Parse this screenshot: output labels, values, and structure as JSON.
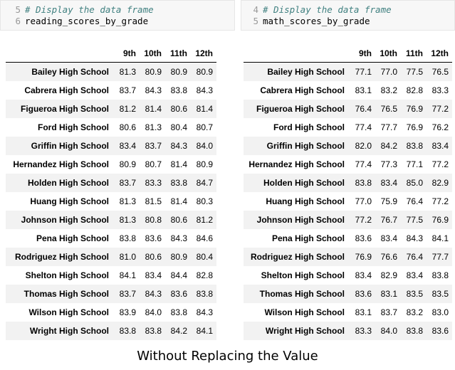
{
  "left_cell": {
    "lines": [
      {
        "num": "5",
        "text": "# Display the data frame",
        "comment": true
      },
      {
        "num": "6",
        "text": "reading_scores_by_grade",
        "comment": false
      }
    ]
  },
  "right_cell": {
    "lines": [
      {
        "num": "4",
        "text": "# Display the data frame",
        "comment": true
      },
      {
        "num": "5",
        "text": "math_scores_by_grade",
        "comment": false
      }
    ]
  },
  "reading_table": {
    "columns": [
      "9th",
      "10th",
      "11th",
      "12th"
    ],
    "rows": [
      {
        "school": "Bailey High School",
        "values": [
          "81.3",
          "80.9",
          "80.9",
          "80.9"
        ]
      },
      {
        "school": "Cabrera High School",
        "values": [
          "83.7",
          "84.3",
          "83.8",
          "84.3"
        ]
      },
      {
        "school": "Figueroa High School",
        "values": [
          "81.2",
          "81.4",
          "80.6",
          "81.4"
        ]
      },
      {
        "school": "Ford High School",
        "values": [
          "80.6",
          "81.3",
          "80.4",
          "80.7"
        ]
      },
      {
        "school": "Griffin High School",
        "values": [
          "83.4",
          "83.7",
          "84.3",
          "84.0"
        ]
      },
      {
        "school": "Hernandez High School",
        "values": [
          "80.9",
          "80.7",
          "81.4",
          "80.9"
        ]
      },
      {
        "school": "Holden High School",
        "values": [
          "83.7",
          "83.3",
          "83.8",
          "84.7"
        ]
      },
      {
        "school": "Huang High School",
        "values": [
          "81.3",
          "81.5",
          "81.4",
          "80.3"
        ]
      },
      {
        "school": "Johnson High School",
        "values": [
          "81.3",
          "80.8",
          "80.6",
          "81.2"
        ]
      },
      {
        "school": "Pena High School",
        "values": [
          "83.8",
          "83.6",
          "84.3",
          "84.6"
        ]
      },
      {
        "school": "Rodriguez High School",
        "values": [
          "81.0",
          "80.6",
          "80.9",
          "80.4"
        ]
      },
      {
        "school": "Shelton High School",
        "values": [
          "84.1",
          "83.4",
          "84.4",
          "82.8"
        ]
      },
      {
        "school": "Thomas High School",
        "values": [
          "83.7",
          "84.3",
          "83.6",
          "83.8"
        ]
      },
      {
        "school": "Wilson High School",
        "values": [
          "83.9",
          "84.0",
          "83.8",
          "84.3"
        ]
      },
      {
        "school": "Wright High School",
        "values": [
          "83.8",
          "83.8",
          "84.2",
          "84.1"
        ]
      }
    ]
  },
  "math_table": {
    "columns": [
      "9th",
      "10th",
      "11th",
      "12th"
    ],
    "rows": [
      {
        "school": "Bailey High School",
        "values": [
          "77.1",
          "77.0",
          "77.5",
          "76.5"
        ]
      },
      {
        "school": "Cabrera High School",
        "values": [
          "83.1",
          "83.2",
          "82.8",
          "83.3"
        ]
      },
      {
        "school": "Figueroa High School",
        "values": [
          "76.4",
          "76.5",
          "76.9",
          "77.2"
        ]
      },
      {
        "school": "Ford High School",
        "values": [
          "77.4",
          "77.7",
          "76.9",
          "76.2"
        ]
      },
      {
        "school": "Griffin High School",
        "values": [
          "82.0",
          "84.2",
          "83.8",
          "83.4"
        ]
      },
      {
        "school": "Hernandez High School",
        "values": [
          "77.4",
          "77.3",
          "77.1",
          "77.2"
        ]
      },
      {
        "school": "Holden High School",
        "values": [
          "83.8",
          "83.4",
          "85.0",
          "82.9"
        ]
      },
      {
        "school": "Huang High School",
        "values": [
          "77.0",
          "75.9",
          "76.4",
          "77.2"
        ]
      },
      {
        "school": "Johnson High School",
        "values": [
          "77.2",
          "76.7",
          "77.5",
          "76.9"
        ]
      },
      {
        "school": "Pena High School",
        "values": [
          "83.6",
          "83.4",
          "84.3",
          "84.1"
        ]
      },
      {
        "school": "Rodriguez High School",
        "values": [
          "76.9",
          "76.6",
          "76.4",
          "77.7"
        ]
      },
      {
        "school": "Shelton High School",
        "values": [
          "83.4",
          "82.9",
          "83.4",
          "83.8"
        ]
      },
      {
        "school": "Thomas High School",
        "values": [
          "83.6",
          "83.1",
          "83.5",
          "83.5"
        ]
      },
      {
        "school": "Wilson High School",
        "values": [
          "83.1",
          "83.7",
          "83.2",
          "83.0"
        ]
      },
      {
        "school": "Wright High School",
        "values": [
          "83.3",
          "84.0",
          "83.8",
          "83.6"
        ]
      }
    ]
  },
  "caption": "Without Replacing the Value",
  "colors": {
    "comment": "#408080",
    "line_number": "#999999",
    "stripe": "#f2f2f2",
    "cell_bg": "#f7f7f7"
  }
}
